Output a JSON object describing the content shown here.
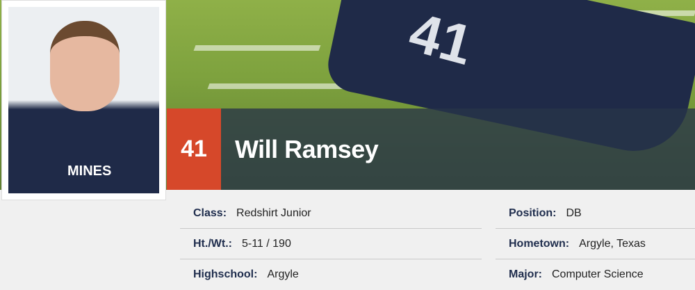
{
  "player": {
    "number": "41",
    "name": "Will Ramsey",
    "jersey_text": "MINES",
    "hero_jersey_number": "41"
  },
  "bio_left": [
    {
      "label": "Class:",
      "value": "Redshirt Junior"
    },
    {
      "label": "Ht./Wt.:",
      "value": "5-11 / 190"
    },
    {
      "label": "Highschool:",
      "value": "Argyle"
    }
  ],
  "bio_right": [
    {
      "label": "Position:",
      "value": "DB"
    },
    {
      "label": "Hometown:",
      "value": "Argyle, Texas"
    },
    {
      "label": "Major:",
      "value": "Computer Science"
    }
  ],
  "colors": {
    "accent": "#d6482a",
    "navy": "#1f2d4d"
  }
}
